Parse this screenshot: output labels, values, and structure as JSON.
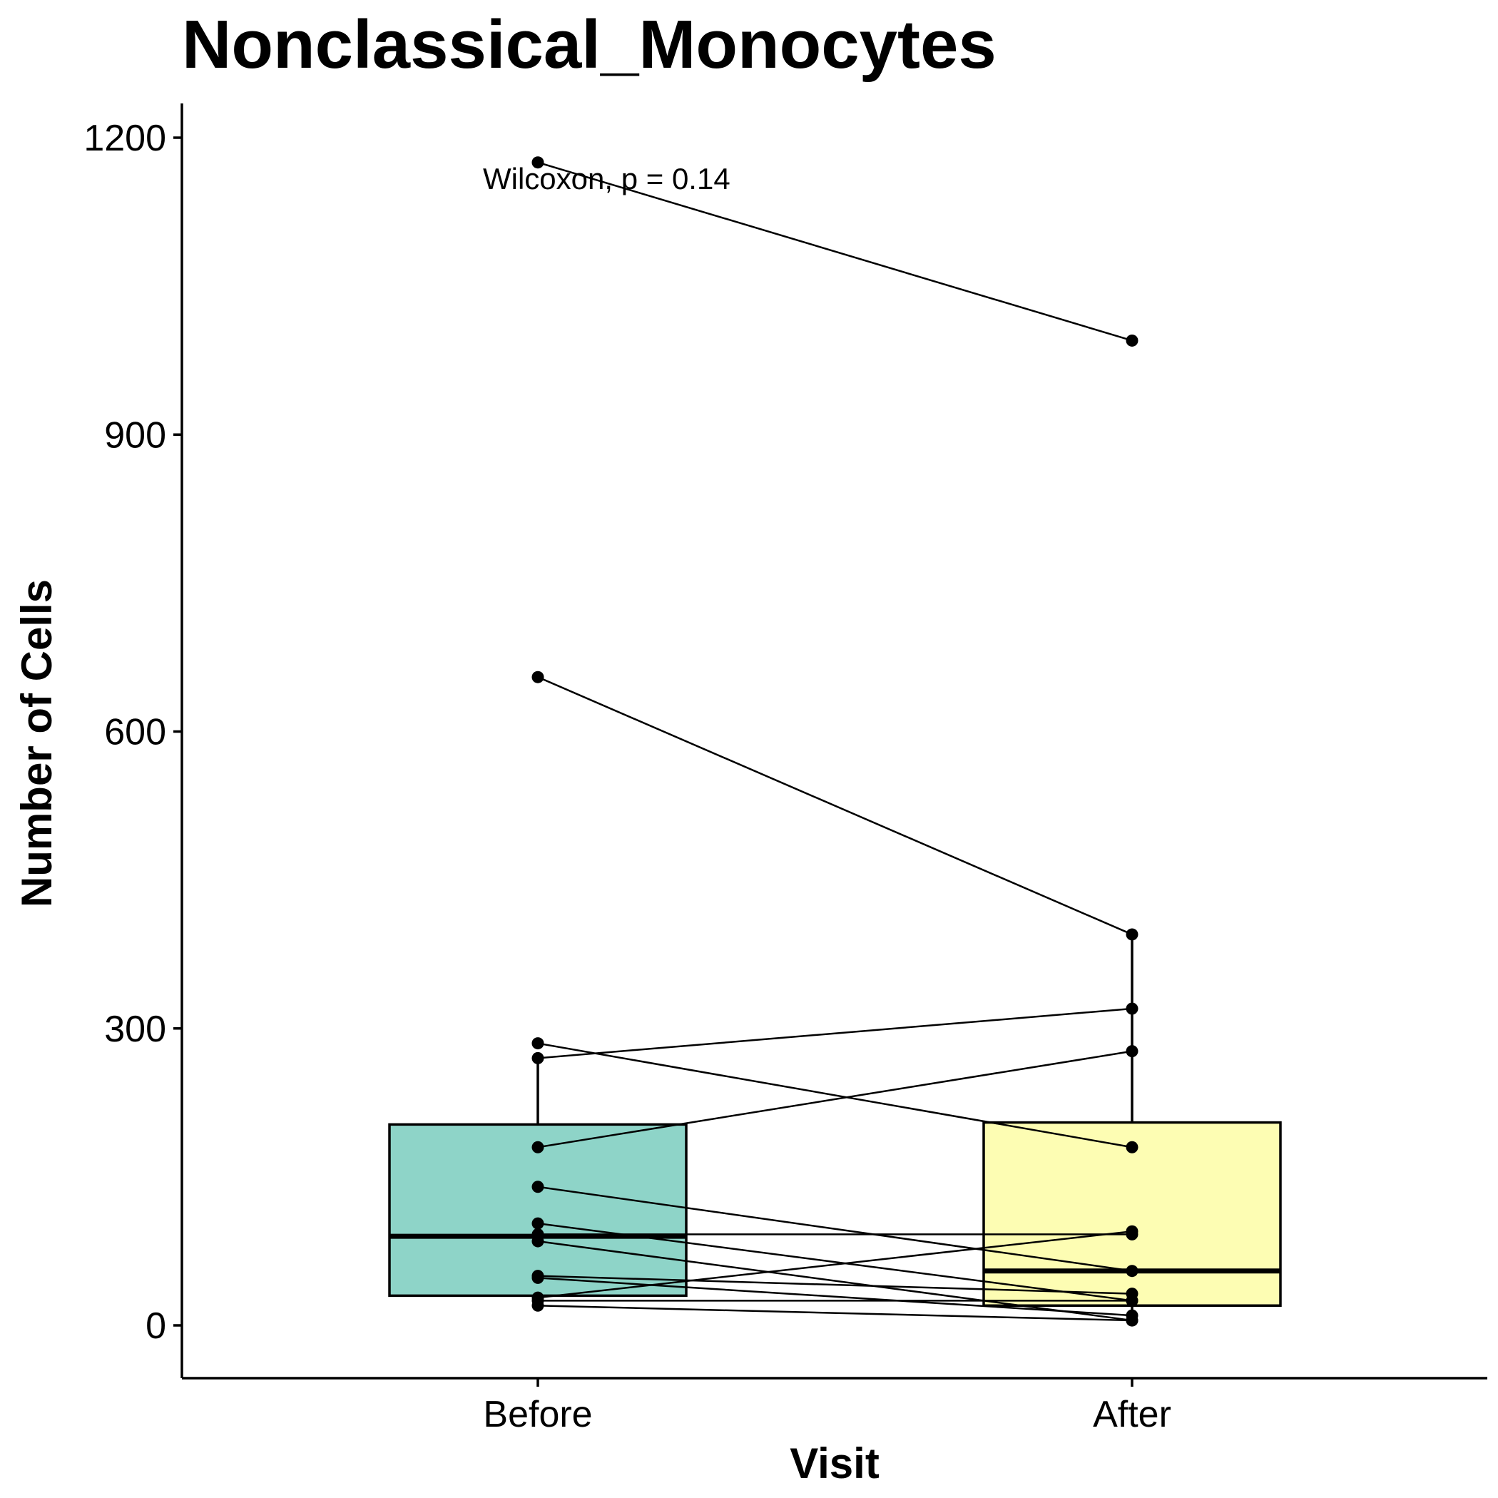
{
  "chart_data": {
    "type": "box",
    "title": "Nonclassical_Monocytes",
    "xlabel": "Visit",
    "ylabel": "Number of Cells",
    "categories": [
      "Before",
      "After"
    ],
    "ylim": [
      -52,
      1235
    ],
    "yticks": [
      0,
      300,
      600,
      900,
      1200
    ],
    "annotation": "Wilcoxon, p = 0.14",
    "colors": {
      "Before": "#8ED4C8",
      "After": "#FDFDB3",
      "line": "#000000"
    },
    "boxes": [
      {
        "category": "Before",
        "whisker_low": 18,
        "q1": 30,
        "median": 90,
        "q3": 203,
        "whisker_high": 270
      },
      {
        "category": "After",
        "whisker_low": 3,
        "q1": 20,
        "median": 55,
        "q3": 205,
        "whisker_high": 395
      }
    ],
    "pairs": [
      {
        "before": 1175,
        "after": 995
      },
      {
        "before": 655,
        "after": 395
      },
      {
        "before": 285,
        "after": 180
      },
      {
        "before": 270,
        "after": 320
      },
      {
        "before": 180,
        "after": 277
      },
      {
        "before": 140,
        "after": 55
      },
      {
        "before": 103,
        "after": 25
      },
      {
        "before": 92,
        "after": 92
      },
      {
        "before": 85,
        "after": 5
      },
      {
        "before": 50,
        "after": 32
      },
      {
        "before": 48,
        "after": 10
      },
      {
        "before": 28,
        "after": 95
      },
      {
        "before": 25,
        "after": 25
      },
      {
        "before": 20,
        "after": 5
      }
    ]
  }
}
